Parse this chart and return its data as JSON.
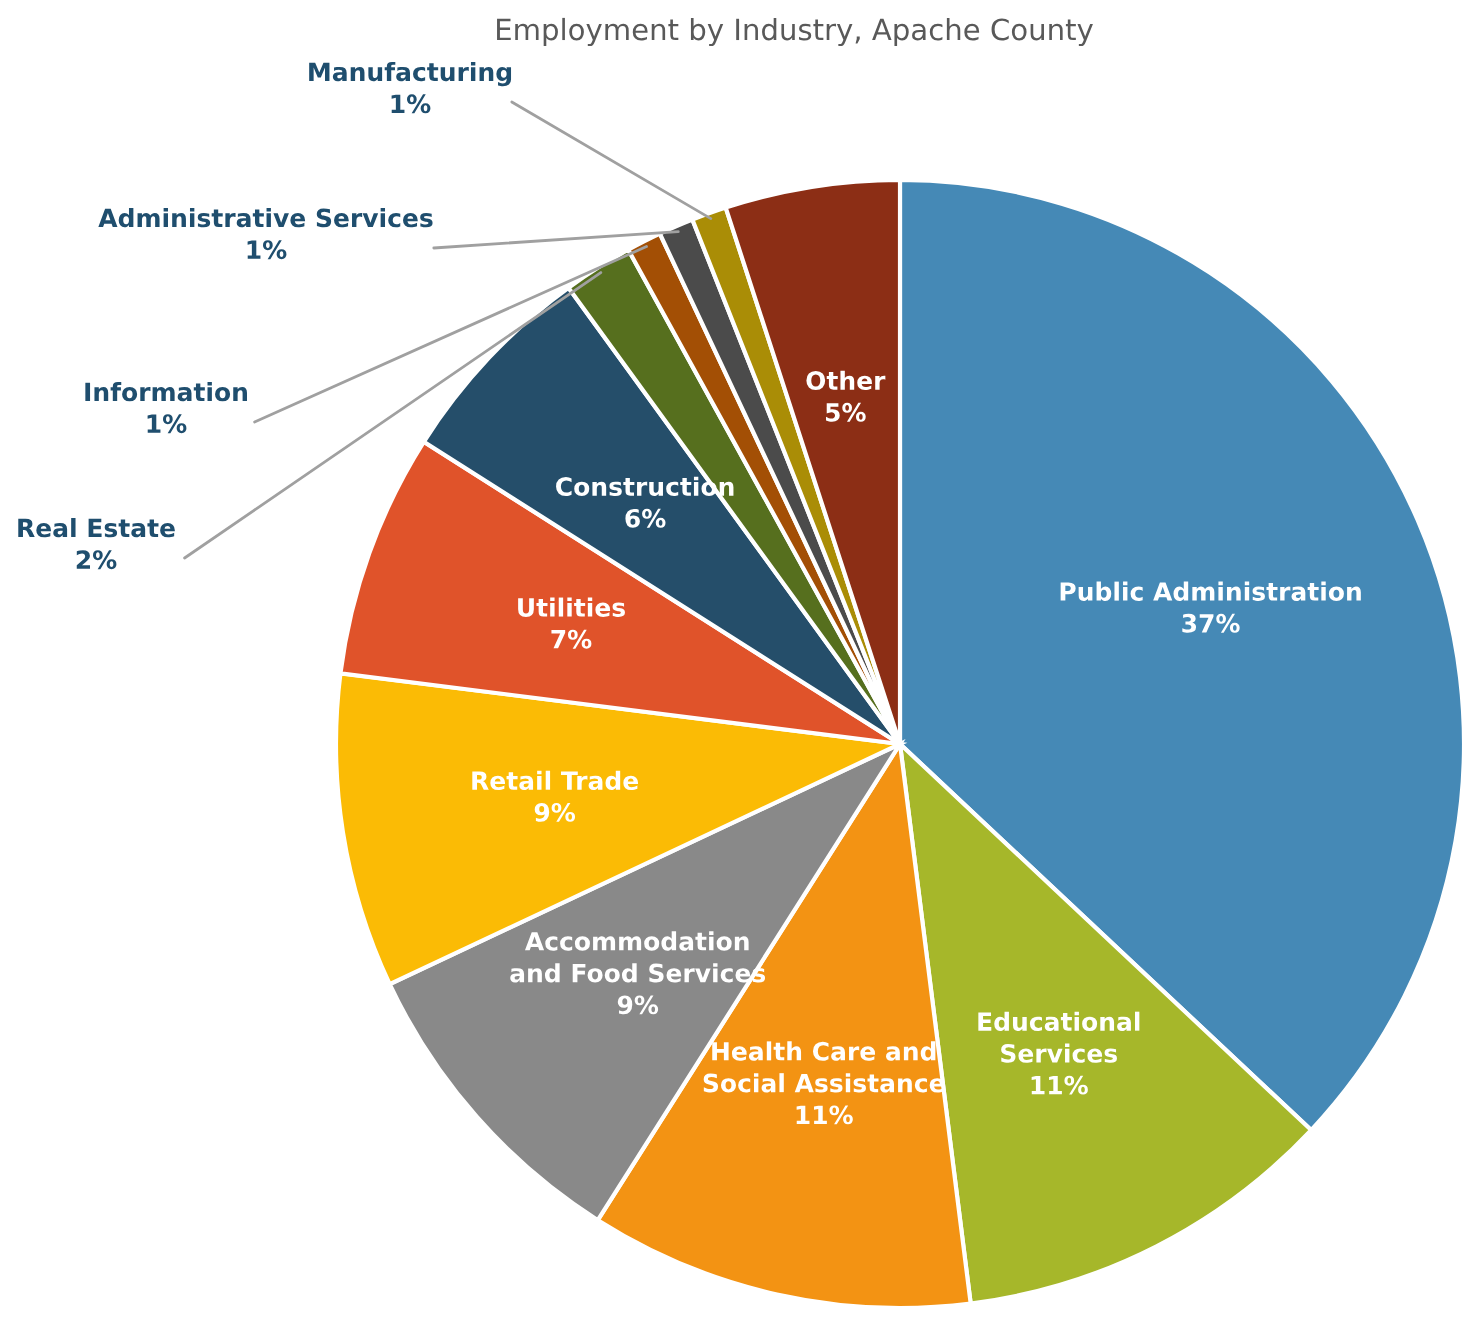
{
  "chart_data": {
    "type": "pie",
    "title": "Employment by Industry, Apache County",
    "categories": [
      "Public Administration",
      "Educational\nServices",
      "Health Care and\nSocial Assistance",
      "Accommodation\nand Food Services",
      "Retail Trade",
      "Utilities",
      "Construction",
      "Real Estate",
      "Information",
      "Administrative Services",
      "Manufacturing",
      "Other"
    ],
    "values": [
      37,
      11,
      11,
      9,
      9,
      7,
      6,
      2,
      1,
      1,
      1,
      5
    ],
    "colors": [
      "#4589b6",
      "#a6b72a",
      "#f39313",
      "#898989",
      "#fbbb05",
      "#e0532a",
      "#254e6a",
      "#566f1e",
      "#a34f05",
      "#4b4b4b",
      "#aa8d06",
      "#8c2e15"
    ],
    "value_labels": [
      "37%",
      "11%",
      "11%",
      "9%",
      "9%",
      "7%",
      "6%",
      "2%",
      "1%",
      "1%",
      "1%",
      "5%"
    ]
  }
}
